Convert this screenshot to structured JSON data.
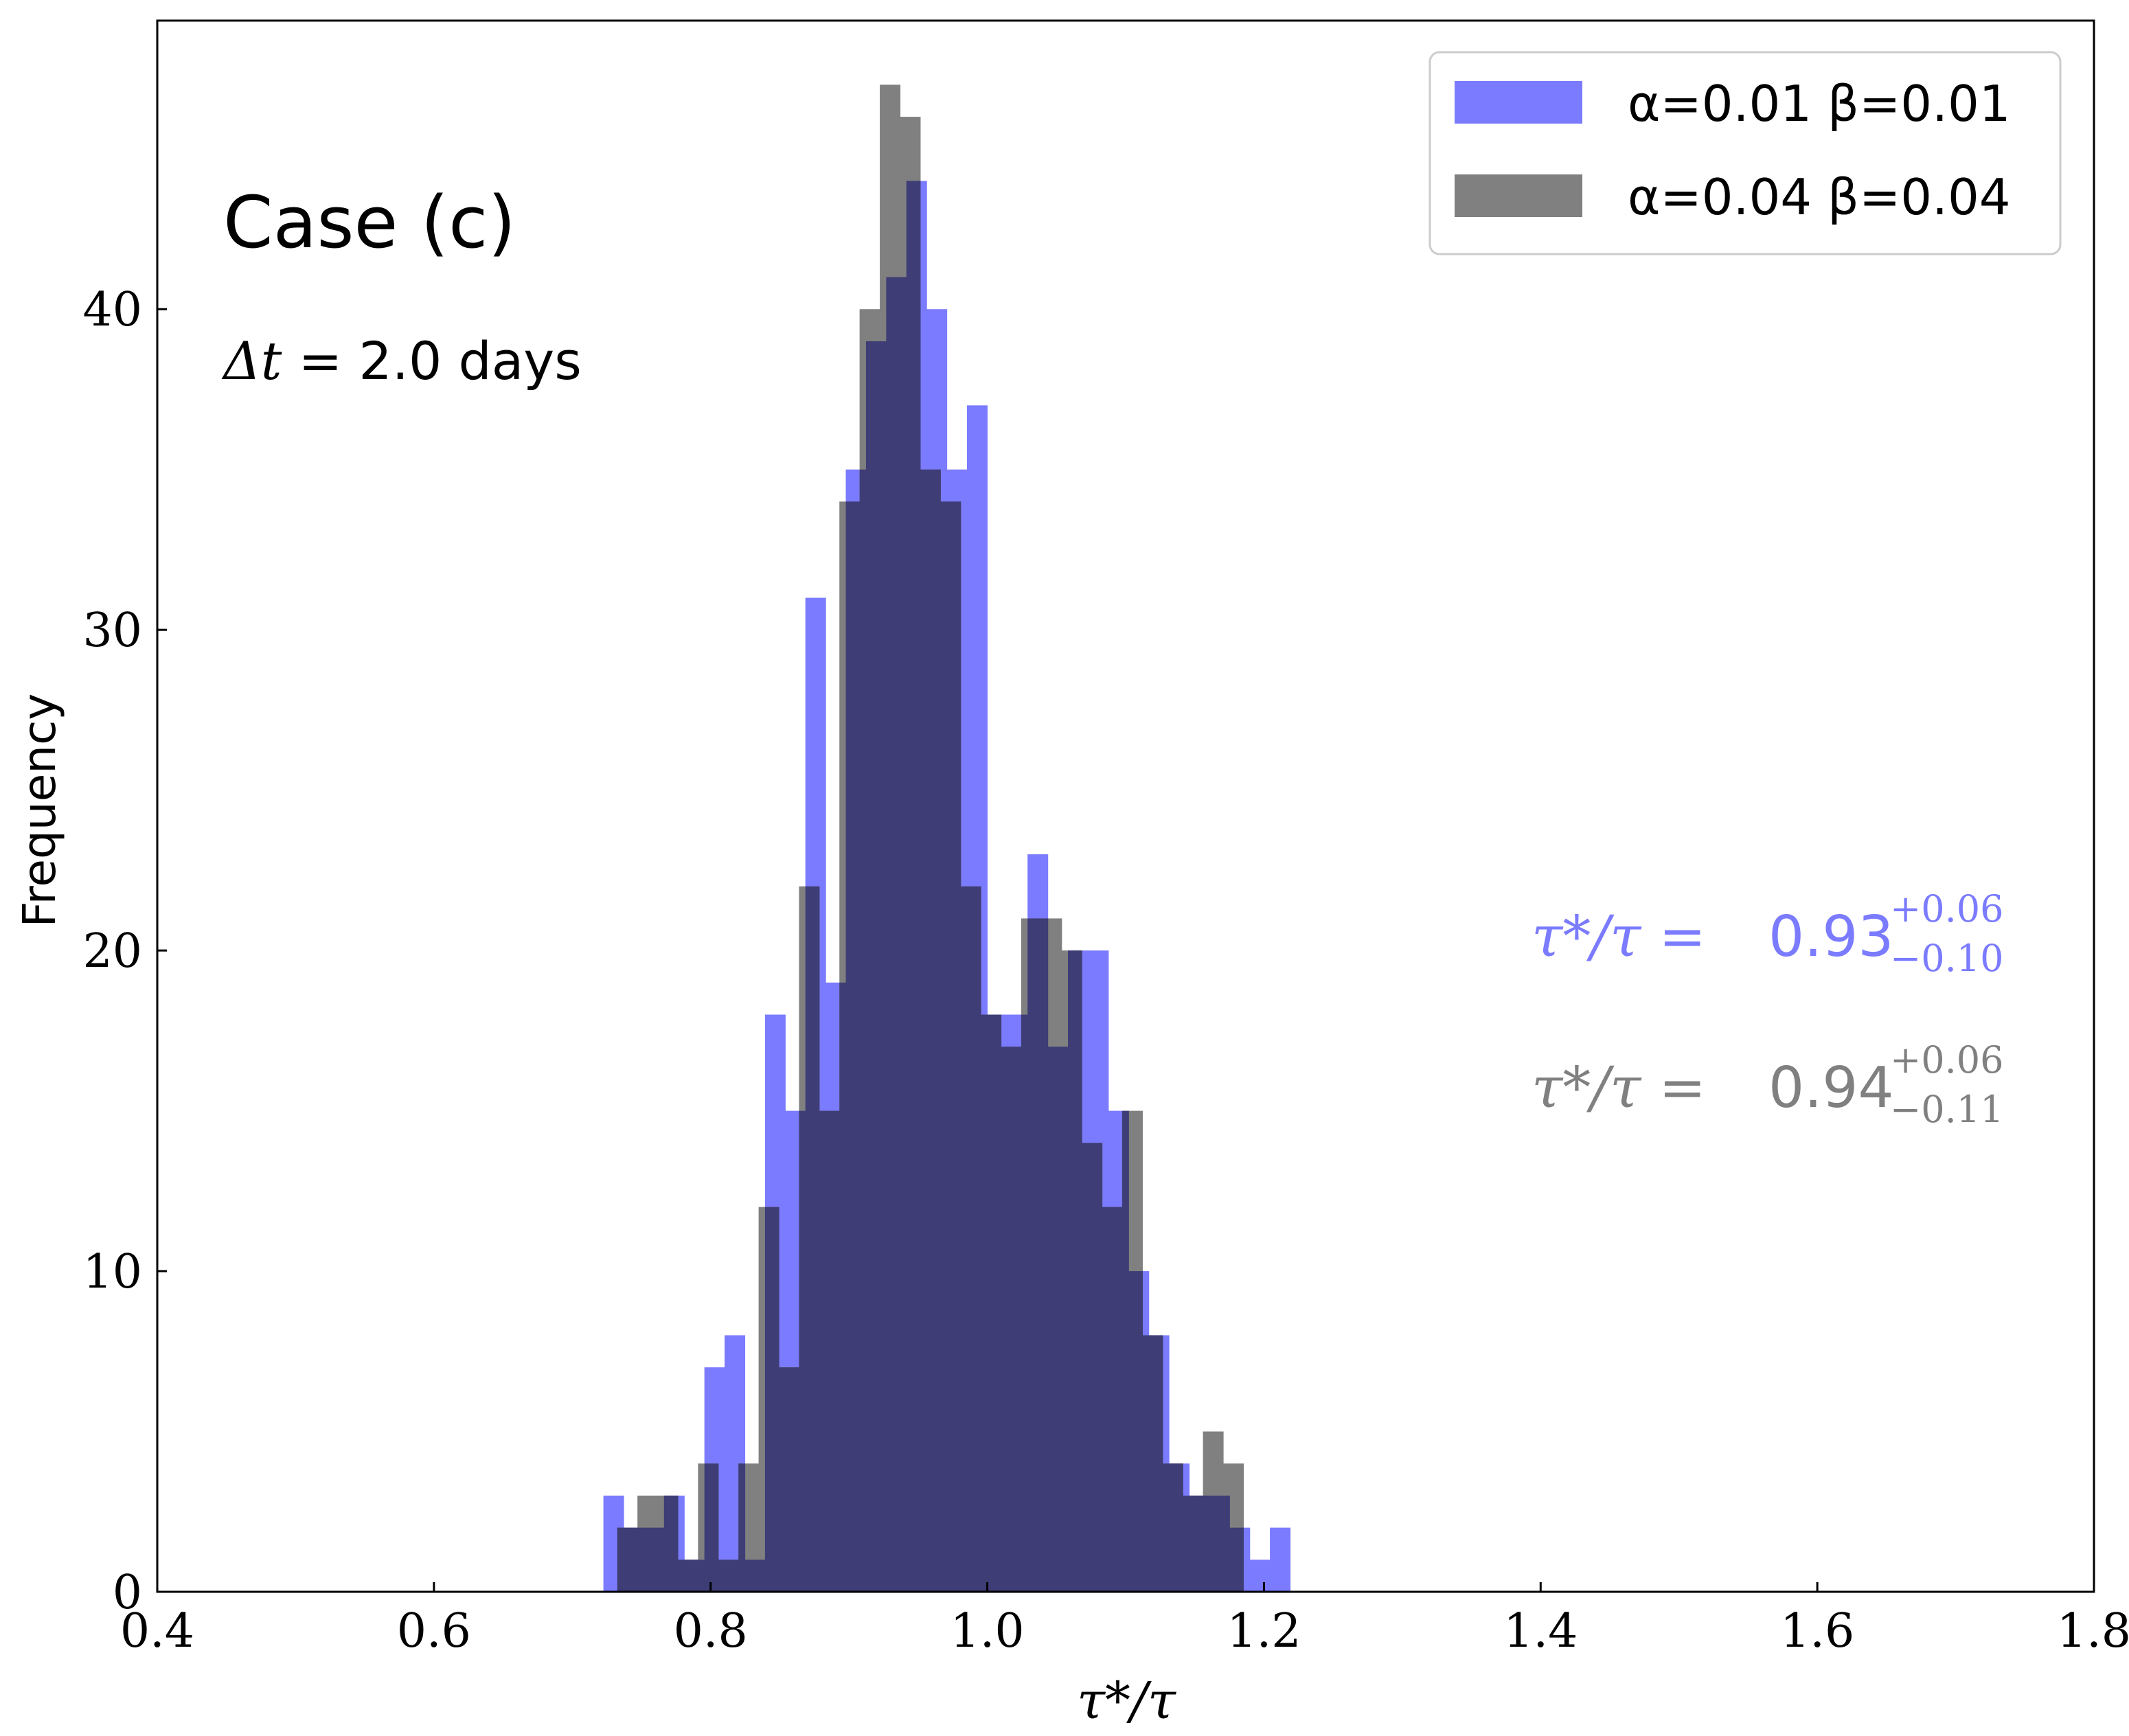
{
  "chart_data": {
    "type": "histogram",
    "xlabel": "τ*/τ",
    "ylabel": "Frequency",
    "xlim": [
      0.4,
      1.8
    ],
    "ylim": [
      0,
      49
    ],
    "xticks": [
      0.4,
      0.6,
      0.8,
      1.0,
      1.2,
      1.4,
      1.6,
      1.8
    ],
    "xtick_labels": [
      "0.4",
      "0.6",
      "0.8",
      "1.0",
      "1.2",
      "1.4",
      "1.6",
      "1.8"
    ],
    "yticks": [
      0,
      10,
      20,
      30,
      40
    ],
    "ytick_labels": [
      "0",
      "10",
      "20",
      "30",
      "40"
    ],
    "grid": false,
    "legend_position": "top-right",
    "annotations": {
      "case": "Case (c)",
      "dt_symbol": "Δt",
      "dt_value": " = 2.0 days"
    },
    "series": [
      {
        "name_greek": "α=0.01 β=0.01",
        "color": "#7b7bff",
        "opacity": 1.0,
        "bin_start": 0.7225,
        "bin_width": 0.0146,
        "counts": [
          3,
          2,
          2,
          3,
          1,
          7,
          8,
          1,
          18,
          15,
          31,
          19,
          35,
          39,
          41,
          44,
          40,
          35,
          37,
          18,
          18,
          23,
          17,
          20,
          20,
          15,
          10,
          8,
          4,
          3,
          3,
          2,
          1,
          2,
          0
        ],
        "result_lhs": "τ*/τ = ",
        "result_value": "0.93",
        "result_plus": "+0.06",
        "result_minus": "−0.10"
      },
      {
        "name_greek": "α=0.04 β=0.04",
        "color": "#808080",
        "opacity": 1.0,
        "bin_start": 0.7325,
        "bin_width": 0.0146,
        "counts": [
          2,
          3,
          3,
          1,
          4,
          1,
          4,
          12,
          7,
          22,
          15,
          34,
          40,
          47,
          46,
          35,
          34,
          22,
          18,
          17,
          21,
          21,
          20,
          14,
          12,
          15,
          8,
          4,
          3,
          5,
          4
        ],
        "result_lhs": "τ*/τ = ",
        "result_value": "0.94",
        "result_plus": "+0.06",
        "result_minus": "−0.11"
      }
    ]
  },
  "colors": {
    "overlap": "#3e3d76",
    "axis": "#000000"
  }
}
